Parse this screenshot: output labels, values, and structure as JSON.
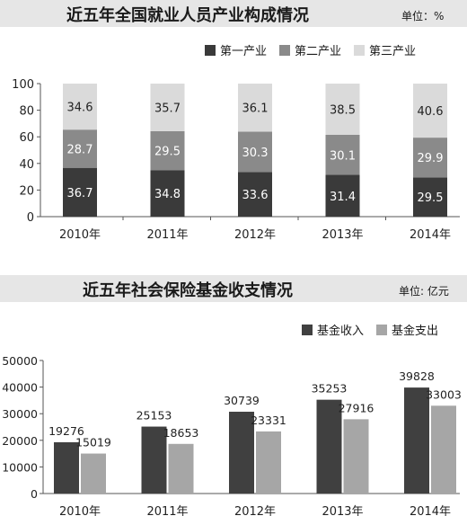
{
  "chart_data": [
    {
      "type": "bar",
      "stacked": true,
      "title": "近五年全国就业人员产业构成情况",
      "unit": "单位：%",
      "categories": [
        "2010年",
        "2011年",
        "2012年",
        "2013年",
        "2014年"
      ],
      "series": [
        {
          "name": "第一产业",
          "values": [
            36.7,
            34.8,
            33.6,
            31.4,
            29.5
          ],
          "color": "#3a3a3a",
          "label_color": "#ffffff"
        },
        {
          "name": "第二产业",
          "values": [
            28.7,
            29.5,
            30.3,
            30.1,
            29.9
          ],
          "color": "#8a8a8a",
          "label_color": "#ffffff"
        },
        {
          "name": "第三产业",
          "values": [
            34.6,
            35.7,
            36.1,
            38.5,
            40.6
          ],
          "color": "#dadada",
          "label_color": "#222222"
        }
      ],
      "ylim": [
        0,
        100
      ],
      "yticks": [
        0,
        20,
        40,
        60,
        80,
        100
      ],
      "legend_position": "top-right",
      "grid": false
    },
    {
      "type": "bar",
      "title": "近五年社会保险基金收支情况",
      "unit": "单位: 亿元",
      "categories": [
        "2010年",
        "2011年",
        "2012年",
        "2013年",
        "2014年"
      ],
      "series": [
        {
          "name": "基金收入",
          "values": [
            19276,
            25153,
            30739,
            35253,
            39828
          ],
          "color": "#404040"
        },
        {
          "name": "基金支出",
          "values": [
            15019,
            18653,
            23331,
            27916,
            33003
          ],
          "color": "#a6a6a6"
        }
      ],
      "ylim": [
        0,
        50000
      ],
      "yticks": [
        0,
        10000,
        20000,
        30000,
        40000,
        50000
      ],
      "legend_position": "top-right",
      "grid": false
    }
  ]
}
